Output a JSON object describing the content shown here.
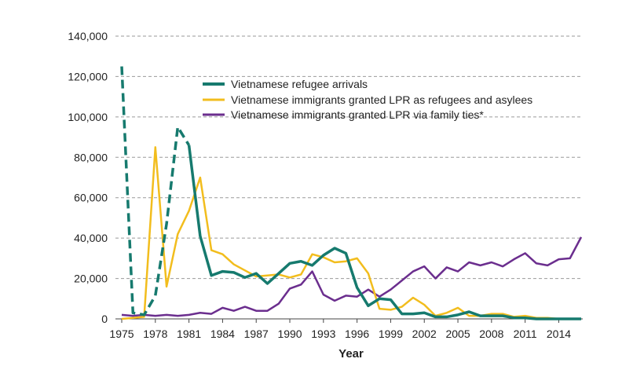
{
  "chart_data": {
    "type": "line",
    "title": "",
    "xlabel": "Year",
    "ylabel": "",
    "xlim": [
      1975,
      2016
    ],
    "ylim": [
      0,
      140000
    ],
    "y_ticks": [
      0,
      20000,
      40000,
      60000,
      80000,
      100000,
      120000,
      140000
    ],
    "y_tick_labels": [
      "0",
      "20,000",
      "40,000",
      "60,000",
      "80,000",
      "100,000",
      "120,000",
      "140,000"
    ],
    "x_ticks": [
      1975,
      1978,
      1981,
      1984,
      1987,
      1990,
      1993,
      1996,
      1999,
      2002,
      2005,
      2008,
      2011,
      2014
    ],
    "x_tick_labels": [
      "1975",
      "1978",
      "1981",
      "1984",
      "1987",
      "1990",
      "1993",
      "1996",
      "1999",
      "2002",
      "2005",
      "2008",
      "2011",
      "2014"
    ],
    "grid": "horizontal dashed",
    "legend_position": "top-center",
    "series": [
      {
        "name": "Vietnamese refugee arrivals",
        "color": "#167a6e",
        "dashed_until": 1981,
        "x": [
          1975,
          1976,
          1977,
          1978,
          1979,
          1980,
          1981,
          1982,
          1983,
          1984,
          1985,
          1986,
          1987,
          1988,
          1989,
          1990,
          1991,
          1992,
          1993,
          1994,
          1995,
          1996,
          1997,
          1998,
          1999,
          2000,
          2001,
          2002,
          2003,
          2004,
          2005,
          2006,
          2007,
          2008,
          2009,
          2010,
          2011,
          2012,
          2013,
          2014,
          2015,
          2016
        ],
        "values": [
          125000,
          3000,
          2000,
          11500,
          47000,
          95000,
          86000,
          41000,
          21500,
          23500,
          23000,
          20500,
          22500,
          17500,
          22500,
          27500,
          28500,
          26500,
          31500,
          35000,
          32500,
          15500,
          6500,
          10000,
          9500,
          2500,
          2500,
          3000,
          1000,
          1000,
          2000,
          3500,
          1500,
          1500,
          1500,
          500,
          500,
          0,
          0,
          0,
          0,
          0
        ]
      },
      {
        "name": "Vietnamese immigrants granted LPR as refugees and asylees",
        "color": "#f2bd1d",
        "x": [
          1975,
          1976,
          1977,
          1978,
          1979,
          1980,
          1981,
          1982,
          1983,
          1984,
          1985,
          1986,
          1987,
          1988,
          1989,
          1990,
          1991,
          1992,
          1993,
          1994,
          1995,
          1996,
          1997,
          1998,
          1999,
          2000,
          2001,
          2002,
          2003,
          2004,
          2005,
          2006,
          2007,
          2008,
          2009,
          2010,
          2011,
          2012,
          2013,
          2014,
          2015,
          2016
        ],
        "values": [
          0,
          500,
          1000,
          85000,
          16000,
          42000,
          53500,
          70000,
          34000,
          32000,
          27000,
          24000,
          21000,
          21500,
          22000,
          20500,
          22000,
          32000,
          30500,
          28000,
          28500,
          30000,
          22500,
          5000,
          4500,
          6000,
          10500,
          7000,
          1500,
          3000,
          5500,
          1500,
          1500,
          2500,
          2500,
          1000,
          1500,
          500,
          500,
          0,
          0,
          0
        ]
      },
      {
        "name": "Vietnamese immigrants granted LPR via family ties*",
        "color": "#6b2e8e",
        "x": [
          1975,
          1976,
          1977,
          1978,
          1979,
          1980,
          1981,
          1982,
          1983,
          1984,
          1985,
          1986,
          1987,
          1988,
          1989,
          1990,
          1991,
          1992,
          1993,
          1994,
          1995,
          1996,
          1997,
          1998,
          1999,
          2000,
          2001,
          2002,
          2003,
          2004,
          2005,
          2006,
          2007,
          2008,
          2009,
          2010,
          2011,
          2012,
          2013,
          2014,
          2015,
          2016
        ],
        "values": [
          2000,
          1500,
          2000,
          1500,
          2000,
          1500,
          2000,
          3000,
          2500,
          5500,
          4000,
          6000,
          4000,
          4000,
          7500,
          15000,
          17000,
          23500,
          12000,
          9000,
          11500,
          11000,
          14500,
          11000,
          14500,
          19000,
          23500,
          26000,
          20000,
          25500,
          23500,
          28000,
          26500,
          28000,
          26000,
          29500,
          32500,
          27500,
          26500,
          29500,
          30000,
          40500
        ]
      }
    ]
  }
}
